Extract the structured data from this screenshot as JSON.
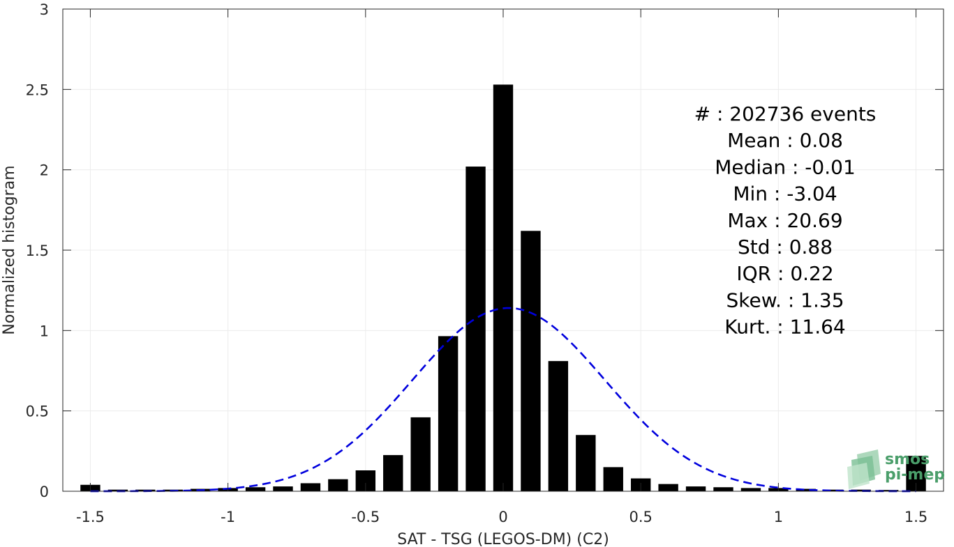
{
  "chart_data": {
    "type": "bar",
    "xlabel": "SAT - TSG (LEGOS-DM) (C2)",
    "ylabel": "Normalized histogram",
    "xlim": [
      -1.6,
      1.6
    ],
    "ylim": [
      0,
      3
    ],
    "x_ticks": [
      -1.5,
      -1,
      -0.5,
      0,
      0.5,
      1,
      1.5
    ],
    "x_tick_labels": [
      "-1.5",
      "-1",
      "-0.5",
      "0",
      "0.5",
      "1",
      "1.5"
    ],
    "y_ticks": [
      0,
      0.5,
      1,
      1.5,
      2,
      2.5,
      3
    ],
    "y_tick_labels": [
      "0",
      "0.5",
      "1",
      "1.5",
      "2",
      "2.5",
      "3"
    ],
    "grid": true,
    "bin_width": 0.1,
    "bar_width_fraction": 0.72,
    "bar_color": "#000000",
    "bins": {
      "centers": [
        -1.5,
        -1.4,
        -1.3,
        -1.2,
        -1.1,
        -1.0,
        -0.9,
        -0.8,
        -0.7,
        -0.6,
        -0.5,
        -0.4,
        -0.3,
        -0.2,
        -0.1,
        0.0,
        0.1,
        0.2,
        0.3,
        0.4,
        0.5,
        0.6,
        0.7,
        0.8,
        0.9,
        1.0,
        1.1,
        1.2,
        1.3,
        1.4,
        1.5
      ],
      "values": [
        0.04,
        0.01,
        0.01,
        0.01,
        0.015,
        0.02,
        0.025,
        0.03,
        0.05,
        0.075,
        0.13,
        0.225,
        0.46,
        0.965,
        2.02,
        2.53,
        1.62,
        0.81,
        0.35,
        0.15,
        0.08,
        0.045,
        0.03,
        0.025,
        0.02,
        0.02,
        0.015,
        0.01,
        0.01,
        0.008,
        0.22
      ]
    },
    "fit_curve": {
      "style": "dashed",
      "color": "#0000dd",
      "distribution": "normal",
      "mean": 0.02,
      "std": 0.35,
      "peak": 1.14
    },
    "annotations": [
      {
        "label": "#  ",
        "value": "202736 events"
      },
      {
        "label": "Mean",
        "value": "0.08"
      },
      {
        "label": "Median",
        "value": "-0.01"
      },
      {
        "label": "Min",
        "value": "-3.04"
      },
      {
        "label": "Max",
        "value": "20.69"
      },
      {
        "label": "Std",
        "value": "0.88"
      },
      {
        "label": "IQR",
        "value": "0.22"
      },
      {
        "label": "Skew.",
        "value": "1.35"
      },
      {
        "label": "Kurt.",
        "value": "11.64"
      }
    ],
    "annotation_lines": [
      "#  : 202736 events",
      "Mean : 0.08",
      "Median : -0.01",
      "Min : -3.04",
      "Max : 20.69",
      "Std : 0.88",
      "IQR : 0.22",
      "Skew. : 1.35",
      "Kurt. : 11.64"
    ]
  },
  "logo": {
    "line1": "smos",
    "line2": "pi-mep",
    "color": "#4a9e6a"
  }
}
